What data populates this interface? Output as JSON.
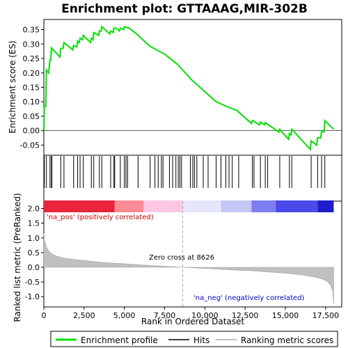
{
  "title": "Enrichment plot: GTTAAAG,MIR-302B",
  "colors": {
    "enrichment_line": "#00e000",
    "hit_line": "#000000",
    "metric_fill": "#c0c0c0",
    "zero_cross_line": "#b0b0b0",
    "pos_label": "#cc0000",
    "neg_label": "#0000cc"
  },
  "chart_data": [
    {
      "type": "line",
      "panel": "enrichment",
      "ylabel": "Enrichment score (ES)",
      "xlim": [
        0,
        18500
      ],
      "ylim": [
        -0.085,
        0.385
      ],
      "yticks": [
        -0.05,
        0.0,
        0.05,
        0.1,
        0.15,
        0.2,
        0.25,
        0.3,
        0.35
      ],
      "ytick_labels": [
        "-0.05",
        "0.00",
        "0.05",
        "0.10",
        "0.15",
        "0.20",
        "0.25",
        "0.30",
        "0.35"
      ],
      "series": [
        {
          "name": "Enrichment profile",
          "points": [
            [
              0,
              0.0
            ],
            [
              30,
              0.085
            ],
            [
              120,
              0.085
            ],
            [
              160,
              0.21
            ],
            [
              300,
              0.2
            ],
            [
              380,
              0.245
            ],
            [
              430,
              0.245
            ],
            [
              470,
              0.287
            ],
            [
              1000,
              0.255
            ],
            [
              1050,
              0.285
            ],
            [
              1200,
              0.285
            ],
            [
              1250,
              0.305
            ],
            [
              1800,
              0.28
            ],
            [
              1850,
              0.295
            ],
            [
              2050,
              0.29
            ],
            [
              2100,
              0.31
            ],
            [
              2200,
              0.305
            ],
            [
              2250,
              0.32
            ],
            [
              2400,
              0.315
            ],
            [
              2450,
              0.33
            ],
            [
              2900,
              0.305
            ],
            [
              2950,
              0.32
            ],
            [
              3050,
              0.315
            ],
            [
              3100,
              0.34
            ],
            [
              3400,
              0.33
            ],
            [
              3450,
              0.345
            ],
            [
              3550,
              0.345
            ],
            [
              3600,
              0.36
            ],
            [
              4100,
              0.335
            ],
            [
              4150,
              0.345
            ],
            [
              4300,
              0.34
            ],
            [
              4350,
              0.355
            ],
            [
              4500,
              0.355
            ],
            [
              4700,
              0.345
            ],
            [
              4750,
              0.355
            ],
            [
              4950,
              0.35
            ],
            [
              5000,
              0.36
            ],
            [
              5300,
              0.355
            ],
            [
              5800,
              0.333
            ],
            [
              6600,
              0.292
            ],
            [
              7500,
              0.265
            ],
            [
              8300,
              0.23
            ],
            [
              9200,
              0.175
            ],
            [
              10000,
              0.135
            ],
            [
              10700,
              0.1
            ],
            [
              11500,
              0.08
            ],
            [
              12000,
              0.07
            ],
            [
              12900,
              0.025
            ],
            [
              12950,
              0.035
            ],
            [
              13400,
              0.02
            ],
            [
              13450,
              0.03
            ],
            [
              13700,
              0.02
            ],
            [
              13750,
              0.028
            ],
            [
              14600,
              -0.005
            ],
            [
              14650,
              0.005
            ],
            [
              15200,
              -0.03
            ],
            [
              15250,
              -0.01
            ],
            [
              15350,
              -0.015
            ],
            [
              15400,
              0.005
            ],
            [
              16550,
              -0.065
            ],
            [
              16600,
              -0.035
            ],
            [
              16950,
              -0.05
            ],
            [
              17000,
              -0.025
            ],
            [
              17200,
              -0.025
            ],
            [
              17250,
              0.0
            ],
            [
              17400,
              -0.005
            ],
            [
              17450,
              0.035
            ],
            [
              18000,
              0.005
            ]
          ]
        }
      ]
    },
    {
      "type": "hits",
      "panel": "hits",
      "xlim": [
        0,
        18500
      ],
      "hits": [
        30,
        160,
        380,
        470,
        500,
        1050,
        1250,
        1850,
        2100,
        2250,
        2450,
        2950,
        3100,
        3450,
        3600,
        4150,
        4350,
        4400,
        4750,
        5000,
        5100,
        5200,
        5850,
        6600,
        6900,
        7100,
        7300,
        7400,
        7800,
        8000,
        8200,
        8350,
        8450,
        8550,
        9100,
        9250,
        9350,
        9500,
        9900,
        10200,
        10700,
        11000,
        11300,
        11500,
        11700,
        12100,
        12950,
        13050,
        13450,
        13750,
        13900,
        14650,
        15250,
        15400,
        16600,
        17000,
        17250,
        17450
      ],
      "heat_bands": [
        {
          "from": 0,
          "to": 4400,
          "color": "#e8253a"
        },
        {
          "from": 4400,
          "to": 6200,
          "color": "#fb8a95"
        },
        {
          "from": 6200,
          "to": 8626,
          "color": "#fdc7e4"
        },
        {
          "from": 8626,
          "to": 11000,
          "color": "#e6e6fb"
        },
        {
          "from": 11000,
          "to": 12900,
          "color": "#c6c6f5"
        },
        {
          "from": 12900,
          "to": 14400,
          "color": "#7e7ef0"
        },
        {
          "from": 14400,
          "to": 17000,
          "color": "#4a4ae8"
        },
        {
          "from": 17000,
          "to": 18000,
          "color": "#1c1ccc"
        }
      ]
    },
    {
      "type": "area",
      "panel": "metric",
      "xlabel": "Rank in Ordered Dataset",
      "ylabel": "Ranked list metric (PreRanked)",
      "xlim": [
        0,
        18500
      ],
      "ylim": [
        -1.35,
        2.25
      ],
      "xticks": [
        0,
        2500,
        5000,
        7500,
        10000,
        12500,
        15000,
        17500
      ],
      "xtick_labels": [
        "0",
        "2,500",
        "5,000",
        "7,500",
        "10,000",
        "12,500",
        "15,000",
        "17,500"
      ],
      "yticks": [
        -1.0,
        -0.5,
        0.0,
        0.5,
        1.0,
        1.5,
        2.0
      ],
      "ytick_labels": [
        "-1.0",
        "-0.5",
        "0.0",
        "0.5",
        "1.0",
        "1.5",
        "2.0"
      ],
      "series": [
        {
          "name": "Ranking metric scores",
          "points": [
            [
              0,
              1.15
            ],
            [
              50,
              0.9
            ],
            [
              150,
              0.7
            ],
            [
              300,
              0.55
            ],
            [
              500,
              0.45
            ],
            [
              800,
              0.38
            ],
            [
              1200,
              0.32
            ],
            [
              2000,
              0.26
            ],
            [
              3000,
              0.2
            ],
            [
              4000,
              0.15
            ],
            [
              5000,
              0.12
            ],
            [
              6000,
              0.08
            ],
            [
              7000,
              0.05
            ],
            [
              8000,
              0.02
            ],
            [
              8626,
              0.0
            ],
            [
              10000,
              -0.04
            ],
            [
              11000,
              -0.07
            ],
            [
              12000,
              -0.1
            ],
            [
              13000,
              -0.12
            ],
            [
              14000,
              -0.16
            ],
            [
              15000,
              -0.2
            ],
            [
              16000,
              -0.26
            ],
            [
              16800,
              -0.33
            ],
            [
              17300,
              -0.4
            ],
            [
              17600,
              -0.48
            ],
            [
              17800,
              -0.6
            ],
            [
              17950,
              -0.85
            ],
            [
              18000,
              -1.25
            ]
          ]
        }
      ],
      "zero_cross_value": 8626,
      "zero_cross_text": "Zero cross at 8626",
      "pos_text": "'na_pos' (positively correlated)",
      "neg_text": "'na_neg' (negatively correlated)"
    }
  ],
  "legend": {
    "items": [
      "Enrichment profile",
      "Hits",
      "Ranking metric scores"
    ]
  }
}
